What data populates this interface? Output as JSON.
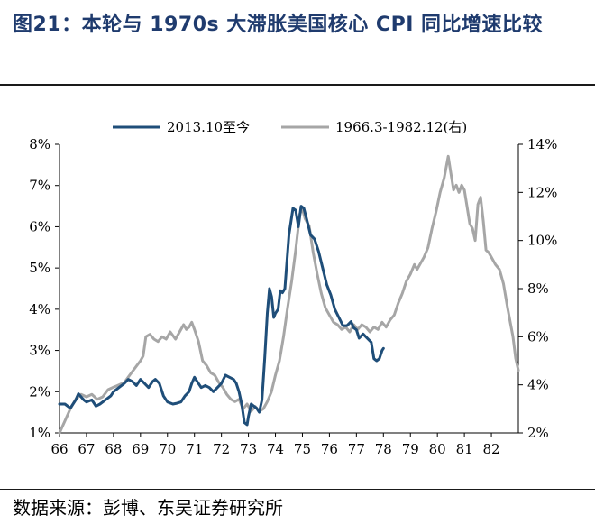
{
  "header": {
    "title": "图21：本轮与 1970s 大滞胀美国核心 CPI 同比增速比较"
  },
  "footer": {
    "source": "数据来源：彭博、东吴证券研究所"
  },
  "chart_data": {
    "type": "line",
    "title": "",
    "xlabel": "",
    "ylabel": "",
    "legend_position": "top-center",
    "grid": false,
    "x_ticks": [
      "66",
      "67",
      "68",
      "69",
      "70",
      "71",
      "72",
      "73",
      "74",
      "75",
      "76",
      "77",
      "78",
      "79",
      "80",
      "81",
      "82"
    ],
    "xlim": [
      66,
      83
    ],
    "y_left": {
      "ticks": [
        "1%",
        "2%",
        "3%",
        "4%",
        "5%",
        "6%",
        "7%",
        "8%"
      ],
      "range": [
        1,
        8
      ],
      "unit": "%"
    },
    "y_right": {
      "ticks": [
        "2%",
        "4%",
        "6%",
        "8%",
        "10%",
        "12%",
        "14%"
      ],
      "range": [
        2,
        14
      ],
      "unit": "%"
    },
    "series": [
      {
        "name": "2013.10至今",
        "axis": "left",
        "color": "#1f4e79",
        "points": [
          [
            66.0,
            1.7
          ],
          [
            66.2,
            1.7
          ],
          [
            66.4,
            1.6
          ],
          [
            66.6,
            1.8
          ],
          [
            66.7,
            1.95
          ],
          [
            66.9,
            1.8
          ],
          [
            67.0,
            1.75
          ],
          [
            67.2,
            1.8
          ],
          [
            67.35,
            1.65
          ],
          [
            67.5,
            1.7
          ],
          [
            67.7,
            1.8
          ],
          [
            67.9,
            1.9
          ],
          [
            68.0,
            2.0
          ],
          [
            68.2,
            2.1
          ],
          [
            68.4,
            2.2
          ],
          [
            68.55,
            2.3
          ],
          [
            68.7,
            2.25
          ],
          [
            68.85,
            2.15
          ],
          [
            69.0,
            2.3
          ],
          [
            69.15,
            2.2
          ],
          [
            69.3,
            2.1
          ],
          [
            69.45,
            2.25
          ],
          [
            69.55,
            2.3
          ],
          [
            69.7,
            2.2
          ],
          [
            69.85,
            1.9
          ],
          [
            70.0,
            1.75
          ],
          [
            70.2,
            1.7
          ],
          [
            70.35,
            1.72
          ],
          [
            70.5,
            1.75
          ],
          [
            70.65,
            1.9
          ],
          [
            70.8,
            2.0
          ],
          [
            70.9,
            2.2
          ],
          [
            71.0,
            2.35
          ],
          [
            71.1,
            2.25
          ],
          [
            71.25,
            2.1
          ],
          [
            71.4,
            2.15
          ],
          [
            71.55,
            2.1
          ],
          [
            71.7,
            2.0
          ],
          [
            71.85,
            2.1
          ],
          [
            72.0,
            2.2
          ],
          [
            72.15,
            2.4
          ],
          [
            72.3,
            2.35
          ],
          [
            72.45,
            2.3
          ],
          [
            72.55,
            2.2
          ],
          [
            72.65,
            2.0
          ],
          [
            72.75,
            1.7
          ],
          [
            72.85,
            1.25
          ],
          [
            72.95,
            1.2
          ],
          [
            73.0,
            1.4
          ],
          [
            73.1,
            1.7
          ],
          [
            73.2,
            1.65
          ],
          [
            73.3,
            1.6
          ],
          [
            73.4,
            1.5
          ],
          [
            73.5,
            1.8
          ],
          [
            73.6,
            2.8
          ],
          [
            73.7,
            3.9
          ],
          [
            73.78,
            4.5
          ],
          [
            73.86,
            4.3
          ],
          [
            73.94,
            3.8
          ],
          [
            74.0,
            3.9
          ],
          [
            74.1,
            4.0
          ],
          [
            74.18,
            4.45
          ],
          [
            74.26,
            4.4
          ],
          [
            74.35,
            4.5
          ],
          [
            74.5,
            5.8
          ],
          [
            74.65,
            6.45
          ],
          [
            74.75,
            6.4
          ],
          [
            74.85,
            6.0
          ],
          [
            74.95,
            6.5
          ],
          [
            75.05,
            6.45
          ],
          [
            75.15,
            6.2
          ],
          [
            75.3,
            5.8
          ],
          [
            75.45,
            5.7
          ],
          [
            75.6,
            5.4
          ],
          [
            75.75,
            5.0
          ],
          [
            75.9,
            4.6
          ],
          [
            76.05,
            4.35
          ],
          [
            76.2,
            4.0
          ],
          [
            76.35,
            3.8
          ],
          [
            76.5,
            3.6
          ],
          [
            76.65,
            3.6
          ],
          [
            76.8,
            3.7
          ],
          [
            76.9,
            3.55
          ],
          [
            77.0,
            3.5
          ],
          [
            77.1,
            3.3
          ],
          [
            77.25,
            3.4
          ],
          [
            77.4,
            3.3
          ],
          [
            77.55,
            3.2
          ],
          [
            77.65,
            2.8
          ],
          [
            77.75,
            2.75
          ],
          [
            77.85,
            2.8
          ],
          [
            77.95,
            3.0
          ],
          [
            78.0,
            3.05
          ]
        ]
      },
      {
        "name": "1966.3-1982.12(右)",
        "axis": "right",
        "color": "#a6a6a6",
        "points": [
          [
            66.0,
            2.0
          ],
          [
            66.2,
            2.5
          ],
          [
            66.4,
            3.0
          ],
          [
            66.6,
            3.4
          ],
          [
            66.8,
            3.6
          ],
          [
            67.0,
            3.5
          ],
          [
            67.2,
            3.6
          ],
          [
            67.4,
            3.4
          ],
          [
            67.6,
            3.5
          ],
          [
            67.8,
            3.8
          ],
          [
            68.0,
            3.9
          ],
          [
            68.2,
            4.0
          ],
          [
            68.4,
            4.1
          ],
          [
            68.6,
            4.4
          ],
          [
            68.8,
            4.7
          ],
          [
            69.0,
            5.0
          ],
          [
            69.1,
            5.2
          ],
          [
            69.2,
            6.0
          ],
          [
            69.35,
            6.1
          ],
          [
            69.5,
            5.9
          ],
          [
            69.65,
            5.8
          ],
          [
            69.8,
            6.0
          ],
          [
            69.95,
            5.9
          ],
          [
            70.1,
            6.2
          ],
          [
            70.3,
            5.9
          ],
          [
            70.45,
            6.2
          ],
          [
            70.6,
            6.5
          ],
          [
            70.7,
            6.3
          ],
          [
            70.8,
            6.4
          ],
          [
            70.9,
            6.6
          ],
          [
            71.0,
            6.3
          ],
          [
            71.15,
            5.8
          ],
          [
            71.3,
            5.0
          ],
          [
            71.45,
            4.8
          ],
          [
            71.6,
            4.5
          ],
          [
            71.75,
            4.4
          ],
          [
            71.9,
            4.1
          ],
          [
            72.05,
            3.9
          ],
          [
            72.2,
            3.6
          ],
          [
            72.35,
            3.4
          ],
          [
            72.5,
            3.3
          ],
          [
            72.65,
            3.4
          ],
          [
            72.8,
            3.0
          ],
          [
            72.95,
            3.2
          ],
          [
            73.1,
            2.9
          ],
          [
            73.25,
            3.1
          ],
          [
            73.4,
            2.9
          ],
          [
            73.55,
            3.0
          ],
          [
            73.7,
            3.3
          ],
          [
            73.85,
            3.7
          ],
          [
            74.0,
            4.4
          ],
          [
            74.15,
            5.0
          ],
          [
            74.3,
            6.0
          ],
          [
            74.45,
            7.2
          ],
          [
            74.6,
            8.3
          ],
          [
            74.75,
            9.6
          ],
          [
            74.9,
            11.1
          ],
          [
            75.0,
            11.3
          ],
          [
            75.1,
            10.9
          ],
          [
            75.25,
            10.6
          ],
          [
            75.4,
            9.5
          ],
          [
            75.55,
            8.6
          ],
          [
            75.7,
            7.8
          ],
          [
            75.85,
            7.2
          ],
          [
            76.0,
            6.9
          ],
          [
            76.15,
            6.6
          ],
          [
            76.3,
            6.5
          ],
          [
            76.45,
            6.3
          ],
          [
            76.6,
            6.4
          ],
          [
            76.75,
            6.2
          ],
          [
            76.9,
            6.5
          ],
          [
            77.05,
            6.3
          ],
          [
            77.2,
            6.5
          ],
          [
            77.35,
            6.4
          ],
          [
            77.5,
            6.2
          ],
          [
            77.65,
            6.4
          ],
          [
            77.8,
            6.3
          ],
          [
            77.95,
            6.6
          ],
          [
            78.1,
            6.4
          ],
          [
            78.25,
            6.7
          ],
          [
            78.4,
            6.9
          ],
          [
            78.55,
            7.4
          ],
          [
            78.7,
            7.8
          ],
          [
            78.85,
            8.3
          ],
          [
            79.0,
            8.6
          ],
          [
            79.15,
            9.0
          ],
          [
            79.25,
            8.8
          ],
          [
            79.35,
            9.0
          ],
          [
            79.5,
            9.3
          ],
          [
            79.65,
            9.7
          ],
          [
            79.8,
            10.5
          ],
          [
            79.95,
            11.2
          ],
          [
            80.1,
            12.0
          ],
          [
            80.25,
            12.6
          ],
          [
            80.4,
            13.5
          ],
          [
            80.5,
            12.8
          ],
          [
            80.6,
            12.1
          ],
          [
            80.7,
            12.3
          ],
          [
            80.8,
            12.0
          ],
          [
            80.9,
            12.3
          ],
          [
            81.0,
            12.1
          ],
          [
            81.1,
            11.4
          ],
          [
            81.2,
            10.7
          ],
          [
            81.3,
            10.5
          ],
          [
            81.4,
            10.0
          ],
          [
            81.5,
            11.5
          ],
          [
            81.6,
            11.8
          ],
          [
            81.7,
            10.8
          ],
          [
            81.8,
            9.6
          ],
          [
            81.9,
            9.5
          ],
          [
            82.0,
            9.3
          ],
          [
            82.15,
            9.0
          ],
          [
            82.3,
            8.8
          ],
          [
            82.45,
            8.2
          ],
          [
            82.6,
            7.2
          ],
          [
            82.7,
            6.6
          ],
          [
            82.8,
            6.0
          ],
          [
            82.9,
            5.1
          ],
          [
            83.0,
            4.6
          ]
        ]
      }
    ]
  }
}
